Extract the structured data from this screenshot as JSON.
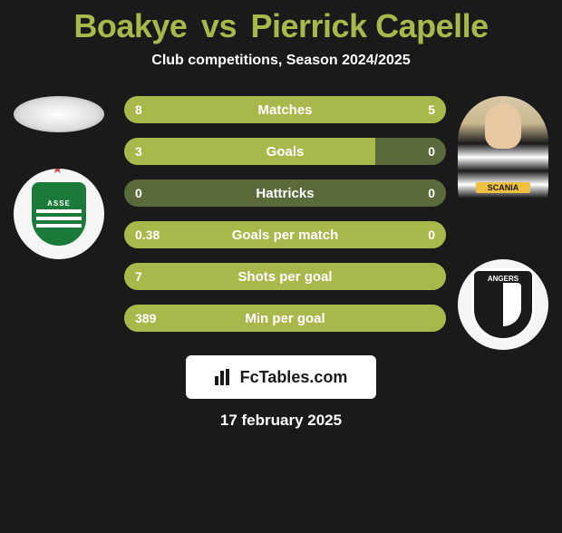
{
  "title_parts": {
    "player1": "Boakye",
    "vs": "vs",
    "player2": "Pierrick Capelle"
  },
  "title_color": "#a8b84a",
  "subtitle": "Club competitions, Season 2024/2025",
  "stats": [
    {
      "label": "Matches",
      "left_val": "8",
      "right_val": "5",
      "left_pct": 61.5,
      "right_pct": 38.5
    },
    {
      "label": "Goals",
      "left_val": "3",
      "right_val": "0",
      "left_pct": 78.0,
      "right_pct": 0.0
    },
    {
      "label": "Hattricks",
      "left_val": "0",
      "right_val": "0",
      "left_pct": 0.0,
      "right_pct": 0.0
    },
    {
      "label": "Goals per match",
      "left_val": "0.38",
      "right_val": "0",
      "left_pct": 100.0,
      "right_pct": 0.0
    },
    {
      "label": "Shots per goal",
      "left_val": "7",
      "right_val": "",
      "left_pct": 100.0,
      "right_pct": 0.0
    },
    {
      "label": "Min per goal",
      "left_val": "389",
      "right_val": "",
      "left_pct": 100.0,
      "right_pct": 0.0
    }
  ],
  "bar_colors": {
    "fill": "#a8b84a",
    "track": "#5a6a3a",
    "text": "#ffffff"
  },
  "player1": {
    "name": "Boakye",
    "club": "AS Saint-Étienne",
    "club_short": "ASSE"
  },
  "player2": {
    "name": "Pierrick Capelle",
    "club": "Angers SCO",
    "club_short": "ANGERS",
    "sponsor": "SCANIA"
  },
  "watermark": "FcTables.com",
  "date": "17 february 2025",
  "background_color": "#1a1a1a"
}
